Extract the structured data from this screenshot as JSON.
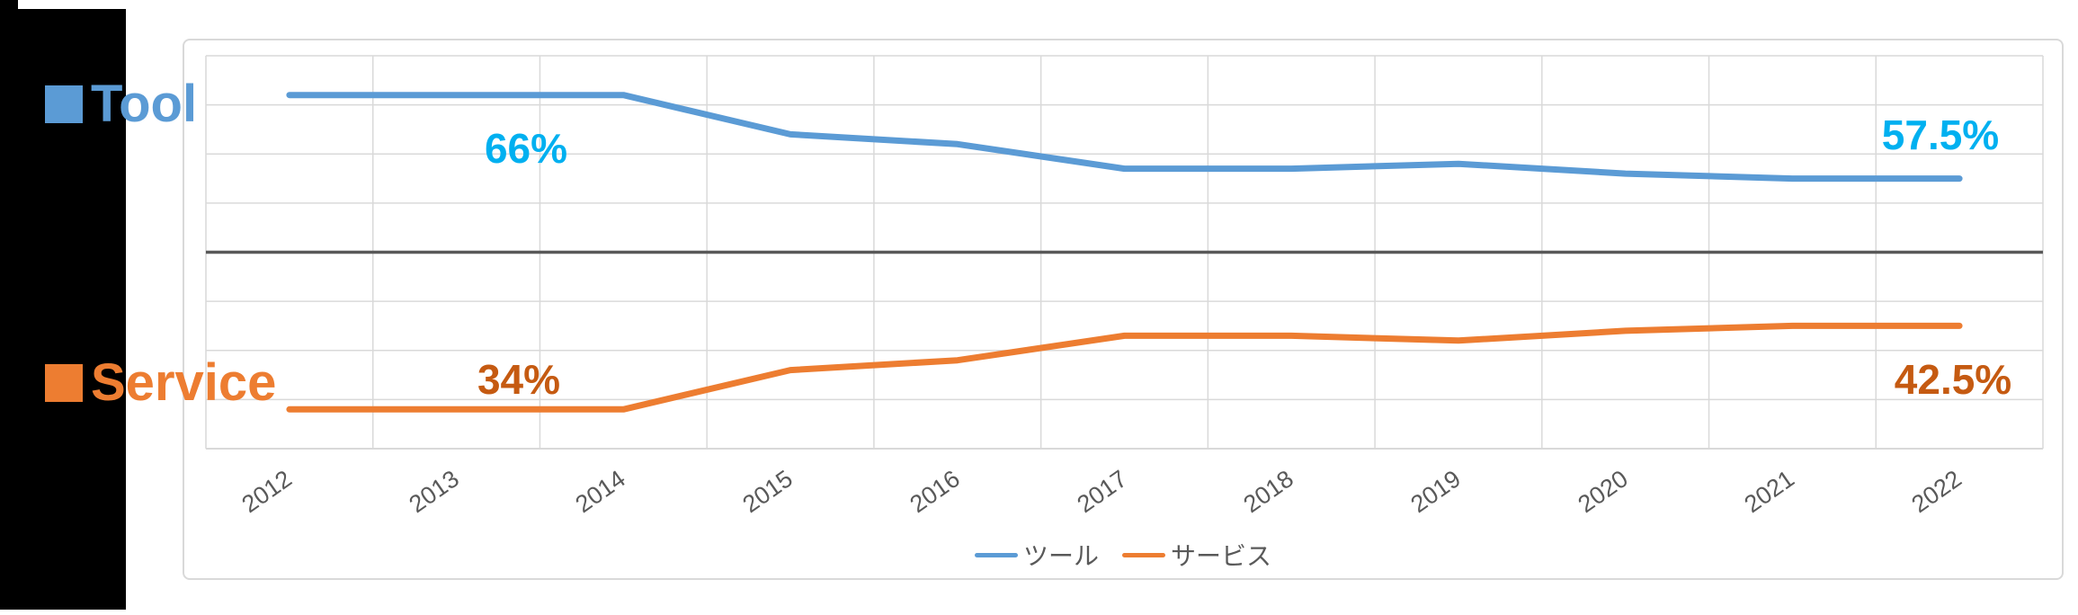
{
  "left_panel": {
    "tool_label": "Tool",
    "service_label": "Service"
  },
  "chart_data": {
    "type": "line",
    "title": "",
    "xlabel": "",
    "ylabel": "",
    "x_categories": [
      "2012",
      "2013",
      "2014",
      "2015",
      "2016",
      "2017",
      "2018",
      "2019",
      "2020",
      "2021",
      "2022"
    ],
    "series": [
      {
        "name": "ツール",
        "name_en": "Tool",
        "color": "#5B9BD5",
        "values": [
          66,
          66,
          66,
          62,
          61,
          58.5,
          58.5,
          59,
          58,
          57.5,
          57.5
        ]
      },
      {
        "name": "サービス",
        "name_en": "Service",
        "color": "#ED7D31",
        "values": [
          34,
          34,
          34,
          38,
          39,
          41.5,
          41.5,
          41,
          42,
          42.5,
          42.5
        ]
      }
    ],
    "ylim": [
      30,
      70
    ],
    "y_gridline_step": 5,
    "midline_value": 50,
    "grid": true,
    "y_axis_labels_visible": false,
    "legend_position": "bottom",
    "annotations": [
      {
        "text": "66%",
        "series": "ツール",
        "near_x": "2013",
        "color": "#00B0F0"
      },
      {
        "text": "57.5%",
        "series": "ツール",
        "near_x": "2022",
        "color": "#00B0F0"
      },
      {
        "text": "34%",
        "series": "サービス",
        "near_x": "2013",
        "color": "#C55A11"
      },
      {
        "text": "42.5%",
        "series": "サービス",
        "near_x": "2022",
        "color": "#C55A11"
      }
    ]
  },
  "legend": {
    "items": [
      {
        "label": "ツール",
        "color": "#5B9BD5"
      },
      {
        "label": "サービス",
        "color": "#ED7D31"
      }
    ]
  },
  "colors": {
    "tool_line": "#5B9BD5",
    "service_line": "#ED7D31",
    "tool_data_label": "#00B0F0",
    "service_data_label": "#C55A11",
    "gridline": "#D9D9D9",
    "midline": "#595959",
    "axis_text": "#595959",
    "chart_border": "#D9D9D9",
    "left_strip": "#000000"
  }
}
